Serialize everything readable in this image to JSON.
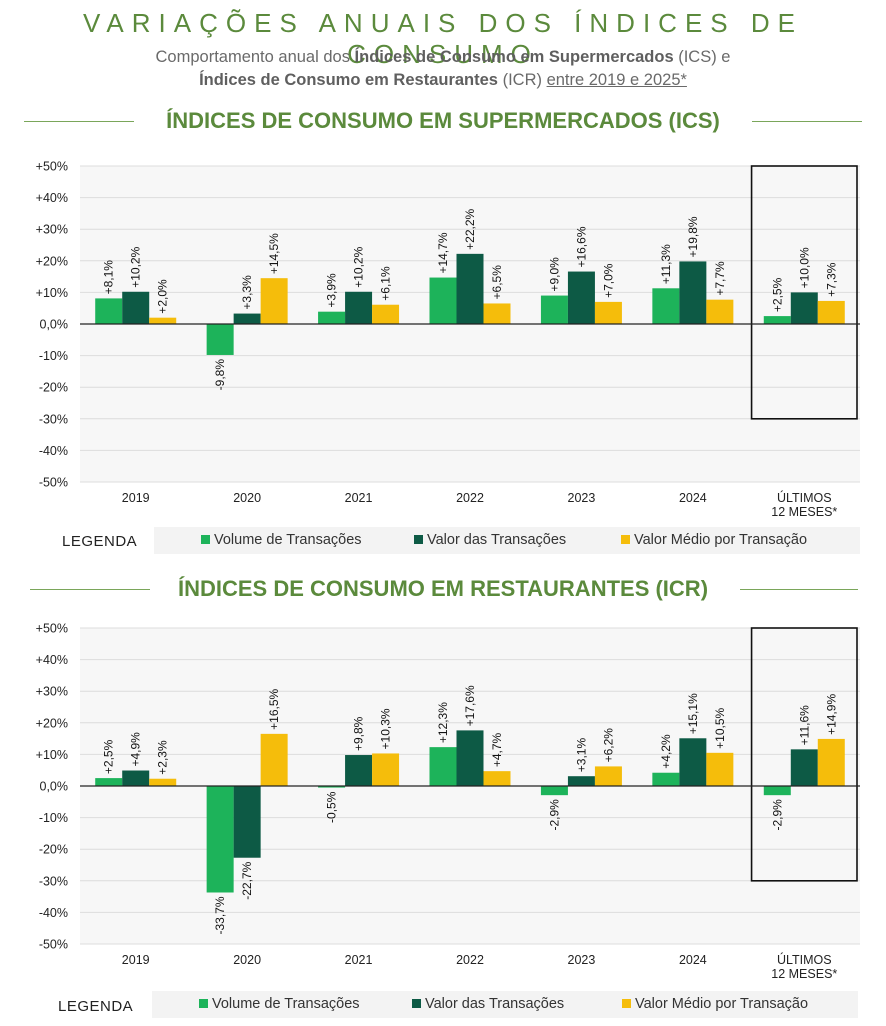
{
  "header": {
    "title": "VARIAÇÕES ANUAIS DOS ÍNDICES DE CONSUMO",
    "subtitle_p1": "Comportamento anual dos ",
    "subtitle_b1": "Índices de Consumo em Supermercados",
    "subtitle_p2": " (ICS) e",
    "subtitle_b2": "Índices de Consumo em Restaurantes",
    "subtitle_p3": " (ICR) ",
    "subtitle_u": "entre 2019 e 2025*"
  },
  "colors": {
    "volume": "#1db35a",
    "valor": "#0d5a45",
    "medio": "#f5bd0b",
    "title_green": "#5b8a3c"
  },
  "legend": {
    "label": "LEGENDA",
    "volume": "Volume de Transações",
    "valor": "Valor das Transações",
    "medio": "Valor Médio por Transação"
  },
  "chart_data": [
    {
      "type": "bar",
      "title": "ÍNDICES DE CONSUMO EM SUPERMERCADOS (ICS)",
      "categories": [
        "2019",
        "2020",
        "2021",
        "2022",
        "2023",
        "2024",
        "ÚLTIMOS|12 MESES*"
      ],
      "ylim": [
        -50,
        50
      ],
      "yticks": [
        "+50%",
        "+40%",
        "+30%",
        "+20%",
        "+10%",
        "0,0%",
        "-10%",
        "-20%",
        "-30%",
        "-40%",
        "-50%"
      ],
      "highlight": {
        "category_index": 6,
        "y_range": [
          -30,
          50
        ]
      },
      "series": [
        {
          "name": "Volume de Transações",
          "values": [
            8.1,
            -9.8,
            3.9,
            14.7,
            9.0,
            11.3,
            2.5
          ],
          "labels": [
            "+8,1%",
            "-9,8%",
            "+3,9%",
            "+14,7%",
            "+9,0%",
            "+11,3%",
            "+2,5%"
          ]
        },
        {
          "name": "Valor das Transações",
          "values": [
            10.2,
            3.3,
            10.2,
            22.2,
            16.6,
            19.8,
            10.0
          ],
          "labels": [
            "+10,2%",
            "+3,3%",
            "+10,2%",
            "+22,2%",
            "+16,6%",
            "+19,8%",
            "+10,0%"
          ]
        },
        {
          "name": "Valor Médio por Transação",
          "values": [
            2.0,
            14.5,
            6.1,
            6.5,
            7.0,
            7.7,
            7.3
          ],
          "labels": [
            "+2,0%",
            "+14,5%",
            "+6,1%",
            "+6,5%",
            "+7,0%",
            "+7,7%",
            "+7,3%"
          ]
        }
      ]
    },
    {
      "type": "bar",
      "title": "ÍNDICES DE CONSUMO EM RESTAURANTES (ICR)",
      "categories": [
        "2019",
        "2020",
        "2021",
        "2022",
        "2023",
        "2024",
        "ÚLTIMOS|12 MESES*"
      ],
      "ylim": [
        -50,
        50
      ],
      "yticks": [
        "+50%",
        "+40%",
        "+30%",
        "+20%",
        "+10%",
        "0,0%",
        "-10%",
        "-20%",
        "-30%",
        "-40%",
        "-50%"
      ],
      "highlight": {
        "category_index": 6,
        "y_range": [
          -30,
          50
        ]
      },
      "series": [
        {
          "name": "Volume de Transações",
          "values": [
            2.5,
            -33.7,
            -0.5,
            12.3,
            -2.9,
            4.2,
            -2.9
          ],
          "labels": [
            "+2,5%",
            "-33,7%",
            "-0,5%",
            "+12,3%",
            "-2,9%",
            "+4,2%",
            "-2,9%"
          ]
        },
        {
          "name": "Valor das Transações",
          "values": [
            4.9,
            -22.7,
            9.8,
            17.6,
            3.1,
            15.1,
            11.6
          ],
          "labels": [
            "+4,9%",
            "-22,7%",
            "+9,8%",
            "+17,6%",
            "+3,1%",
            "+15,1%",
            "+11,6%"
          ]
        },
        {
          "name": "Valor Médio por Transação",
          "values": [
            2.3,
            16.5,
            10.3,
            4.7,
            6.2,
            10.5,
            14.9
          ],
          "labels": [
            "+2,3%",
            "+16,5%",
            "+10,3%",
            "+4,7%",
            "+6,2%",
            "+10,5%",
            "+14,9%"
          ]
        }
      ]
    }
  ]
}
